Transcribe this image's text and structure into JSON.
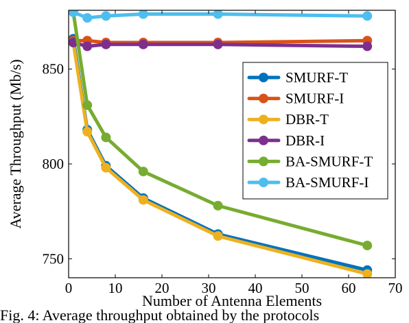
{
  "chart_data": {
    "type": "line",
    "xlabel": "Number of Antenna Elements",
    "ylabel": "Average Throughput (Mb/s)",
    "xlim": [
      0,
      70
    ],
    "ylim": [
      740,
      881
    ],
    "xticks": [
      0,
      10,
      20,
      30,
      40,
      50,
      60,
      70
    ],
    "yticks": [
      750,
      800,
      850
    ],
    "grid": false,
    "legend_position": "right",
    "series": [
      {
        "name": "SMURF-T",
        "color": "#0072BD",
        "x": [
          1,
          4,
          8,
          16,
          32,
          64
        ],
        "y": [
          866,
          818,
          799,
          782,
          763,
          744
        ]
      },
      {
        "name": "SMURF-I",
        "color": "#D95319",
        "x": [
          1,
          4,
          8,
          16,
          32,
          64
        ],
        "y": [
          865,
          865,
          864,
          864,
          864,
          865
        ]
      },
      {
        "name": "DBR-T",
        "color": "#EDB120",
        "x": [
          1,
          4,
          8,
          16,
          32,
          64
        ],
        "y": [
          864,
          817,
          798,
          781,
          762,
          742
        ]
      },
      {
        "name": "DBR-I",
        "color": "#7E2F8E",
        "x": [
          1,
          4,
          8,
          16,
          32,
          64
        ],
        "y": [
          864,
          862,
          863,
          863,
          863,
          862
        ]
      },
      {
        "name": "BA-SMURF-T",
        "color": "#77AC30",
        "x": [
          1,
          4,
          8,
          16,
          32,
          64
        ],
        "y": [
          880,
          831,
          814,
          796,
          778,
          757
        ]
      },
      {
        "name": "BA-SMURF-I",
        "color": "#4DBEEE",
        "x": [
          1,
          4,
          8,
          16,
          32,
          64
        ],
        "y": [
          880,
          877,
          878,
          879,
          879,
          878
        ]
      }
    ]
  },
  "caption": "Fig. 4: Average throughput obtained by the protocols"
}
